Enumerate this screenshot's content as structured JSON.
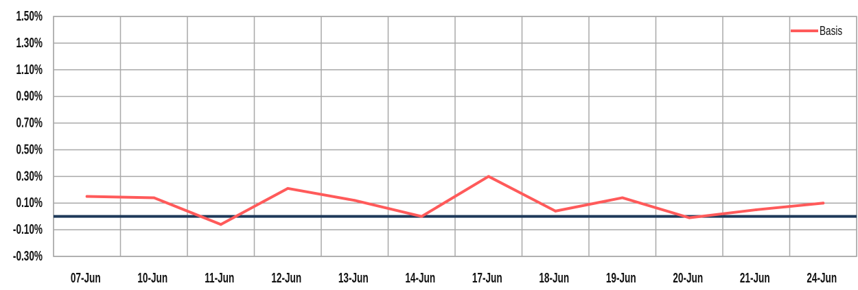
{
  "chart_data": {
    "type": "line",
    "categories": [
      "07-Jun",
      "10-Jun",
      "11-Jun",
      "12-Jun",
      "13-Jun",
      "14-Jun",
      "17-Jun",
      "18-Jun",
      "19-Jun",
      "20-Jun",
      "21-Jun",
      "24-Jun"
    ],
    "series": [
      {
        "name": "Basis",
        "color": "#ff5a5a",
        "values": [
          0.15,
          0.14,
          -0.06,
          0.21,
          0.12,
          0.0,
          0.3,
          0.04,
          0.14,
          -0.01,
          0.05,
          0.1
        ]
      }
    ],
    "yticks": [
      "1.50%",
      "1.30%",
      "1.10%",
      "0.90%",
      "0.70%",
      "0.50%",
      "0.30%",
      "0.10%",
      "-0.10%",
      "-0.30%"
    ],
    "ytick_values": [
      1.5,
      1.3,
      1.1,
      0.9,
      0.7,
      0.5,
      0.3,
      0.1,
      -0.1,
      -0.3
    ],
    "ylim": [
      -0.3,
      1.5
    ],
    "reference_line": {
      "value": 0.0,
      "color": "#1f3a5a"
    },
    "grid": true,
    "legend_position": "top-right",
    "title": "",
    "xlabel": "",
    "ylabel": ""
  }
}
